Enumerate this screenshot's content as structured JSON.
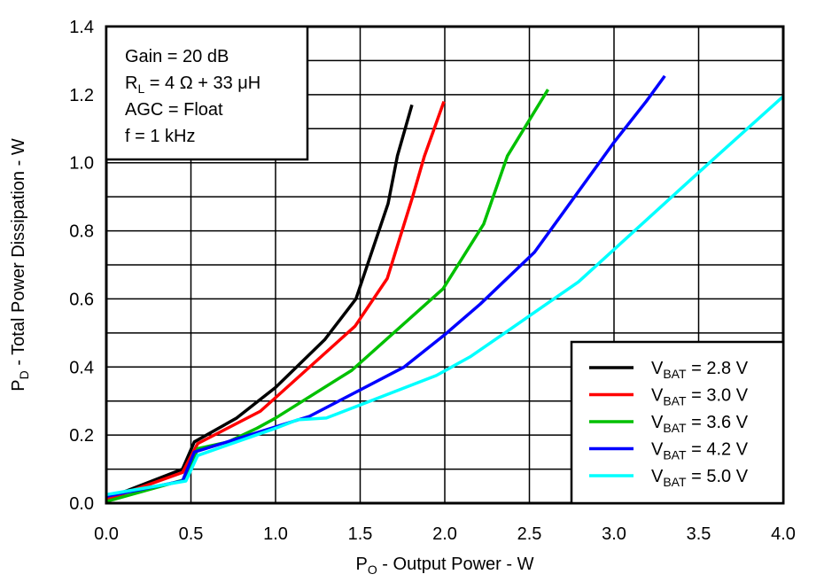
{
  "chart_data": {
    "type": "line",
    "xlabel": {
      "main": "P",
      "sub": "O",
      "rest": " - Output Power - W"
    },
    "ylabel": {
      "main": "P",
      "sub": "D",
      "rest": " - Total Power Dissipation - W"
    },
    "xlim": [
      0,
      4.0
    ],
    "ylim": [
      0,
      1.4
    ],
    "xticks": [
      "0.0",
      "0.5",
      "1.0",
      "1.5",
      "2.0",
      "2.5",
      "3.0",
      "3.5",
      "4.0"
    ],
    "yticks": [
      "0.0",
      "0.2",
      "0.4",
      "0.6",
      "0.8",
      "1.0",
      "1.2",
      "1.4"
    ],
    "grid": true,
    "legend_position": "bottom-right",
    "annotation": [
      {
        "main": "Gain = 20 dB",
        "sub": "",
        "rest": ""
      },
      {
        "main": "R",
        "sub": "L",
        "rest": " = 4 Ω + 33 μH"
      },
      {
        "main": "AGC = Float",
        "sub": "",
        "rest": ""
      },
      {
        "main": "f = 1 kHz",
        "sub": "",
        "rest": ""
      }
    ],
    "series": [
      {
        "name": {
          "main": "V",
          "sub": "BAT",
          "rest": " = 2.8 V"
        },
        "color": "#000000",
        "x": [
          0,
          0.45,
          0.52,
          0.77,
          1.0,
          1.29,
          1.475,
          1.665,
          1.72,
          1.806
        ],
        "y": [
          0.013,
          0.1,
          0.18,
          0.25,
          0.34,
          0.48,
          0.6,
          0.88,
          1.02,
          1.17
        ]
      },
      {
        "name": {
          "main": "V",
          "sub": "BAT",
          "rest": " = 3.0 V"
        },
        "color": "#ff0000",
        "x": [
          0,
          0.45,
          0.54,
          0.91,
          1.0,
          1.47,
          1.66,
          1.81,
          1.88,
          1.995
        ],
        "y": [
          0.01,
          0.09,
          0.175,
          0.27,
          0.31,
          0.52,
          0.66,
          0.9,
          1.02,
          1.18
        ]
      },
      {
        "name": {
          "main": "V",
          "sub": "BAT",
          "rest": " = 3.6 V"
        },
        "color": "#00c000",
        "x": [
          0,
          0.47,
          0.54,
          0.72,
          0.89,
          1.0,
          1.45,
          1.99,
          2.23,
          2.37,
          2.61
        ],
        "y": [
          0.005,
          0.07,
          0.16,
          0.18,
          0.22,
          0.25,
          0.39,
          0.63,
          0.82,
          1.02,
          1.215
        ]
      },
      {
        "name": {
          "main": "V",
          "sub": "BAT",
          "rest": " = 4.2 V"
        },
        "color": "#0000ff",
        "x": [
          0,
          0.45,
          0.52,
          1.2,
          1.76,
          2.0,
          2.21,
          2.53,
          3.0,
          3.19,
          3.3
        ],
        "y": [
          0.02,
          0.065,
          0.15,
          0.255,
          0.4,
          0.495,
          0.585,
          0.737,
          1.06,
          1.18,
          1.255
        ]
      },
      {
        "name": {
          "main": "V",
          "sub": "BAT",
          "rest": " = 5.0 V"
        },
        "color": "#00ffff",
        "x": [
          0,
          0.47,
          0.54,
          1.0,
          1.13,
          1.3,
          1.95,
          2.15,
          2.34,
          2.79,
          3.49,
          4.0
        ],
        "y": [
          0.025,
          0.065,
          0.14,
          0.22,
          0.245,
          0.25,
          0.375,
          0.43,
          0.495,
          0.65,
          0.967,
          1.195
        ]
      }
    ]
  }
}
